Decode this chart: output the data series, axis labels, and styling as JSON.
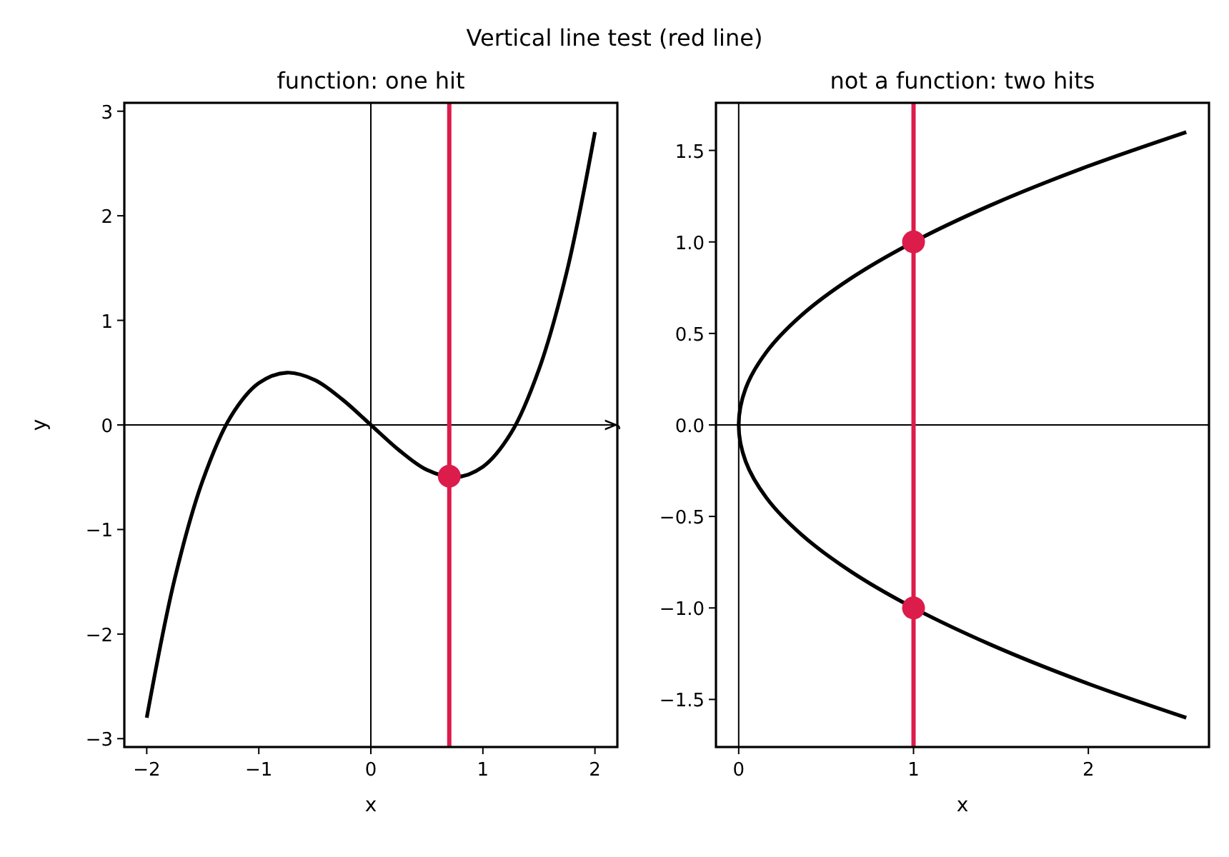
{
  "chart_data": [
    {
      "type": "line",
      "title": "function: one hit",
      "xlabel": "x",
      "ylabel": "y",
      "annotations": [
        "Vertical line test (red line)"
      ],
      "xlim": [
        -2.2,
        2.2
      ],
      "xticks": [
        {
          "value": -2,
          "label": "−2"
        },
        {
          "value": -1,
          "label": "−1"
        },
        0,
        1,
        2
      ],
      "ylim": [
        -3.08,
        3.08
      ],
      "yticks": [
        {
          "value": -3,
          "label": "−3"
        },
        {
          "value": -2,
          "label": "−2"
        },
        {
          "value": -1,
          "label": "−1"
        },
        0,
        1,
        2,
        3
      ],
      "grid": false,
      "ref_lines": [
        {
          "axis": "x",
          "value": 0,
          "color": "#000000"
        },
        {
          "axis": "y",
          "value": 0,
          "color": "#000000"
        },
        {
          "axis": "x",
          "value": 0.7,
          "color": "#dc1c4b"
        }
      ],
      "series": [
        {
          "color": "#000000",
          "marker": "none",
          "x": [
            -2,
            -1.75,
            -1.5,
            -1.25,
            -1,
            -0.75,
            -0.5,
            -0.25,
            0,
            0.25,
            0.5,
            0.75,
            1,
            1.25,
            1.5,
            1.75,
            2
          ],
          "values": [
            -2.8,
            -1.47,
            -0.53,
            0.08,
            0.4,
            0.5,
            0.43,
            0.24,
            0,
            -0.24,
            -0.43,
            -0.5,
            -0.4,
            -0.08,
            0.53,
            1.47,
            2.8
          ]
        },
        {
          "type": "scatter",
          "color": "#dc1c4b",
          "marker": "circle",
          "x": [
            0.7
          ],
          "values": [
            -0.49
          ]
        }
      ]
    },
    {
      "type": "line",
      "title": "not a function: two hits",
      "xlabel": "x",
      "ylabel": "y",
      "xlim": [
        -0.13,
        2.69
      ],
      "xticks": [
        0,
        1,
        2
      ],
      "ylim": [
        -1.76,
        1.76
      ],
      "yticks": [
        {
          "value": -1.5,
          "label": "−1.5"
        },
        {
          "value": -1,
          "label": "−1.0"
        },
        {
          "value": -0.5,
          "label": "−0.5"
        },
        {
          "value": 0,
          "label": "0.0"
        },
        0.5,
        {
          "value": 1,
          "label": "1.0"
        },
        1.5
      ],
      "grid": false,
      "ref_lines": [
        {
          "axis": "x",
          "value": 0,
          "color": "#000000"
        },
        {
          "axis": "y",
          "value": 0,
          "color": "#000000"
        },
        {
          "axis": "x",
          "value": 1,
          "color": "#dc1c4b"
        }
      ],
      "series": [
        {
          "color": "#000000",
          "marker": "none",
          "x": [
            2.56,
            1.96,
            1.44,
            1,
            0.64,
            0.36,
            0.16,
            0.04,
            0,
            0.04,
            0.16,
            0.36,
            0.64,
            1,
            1.44,
            1.96,
            2.56
          ],
          "values": [
            1.6,
            1.4,
            1.2,
            1,
            0.8,
            0.6,
            0.4,
            0.2,
            0,
            -0.2,
            -0.4,
            -0.6,
            -0.8,
            -1,
            -1.2,
            -1.4,
            -1.6
          ]
        },
        {
          "type": "scatter",
          "color": "#dc1c4b",
          "marker": "circle",
          "x": [
            1,
            1
          ],
          "values": [
            1,
            -1
          ]
        }
      ]
    }
  ]
}
